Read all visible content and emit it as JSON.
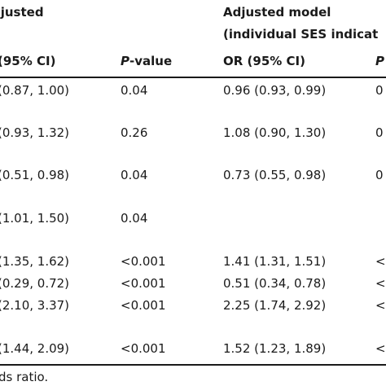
{
  "header": {
    "group_left": "djusted",
    "group_right_line1": "Adjusted model",
    "group_right_line2": "(individual SES indicat",
    "col_ci_left": "95% CI)",
    "col_p_left_italic": "P",
    "col_p_left_rest": "-value",
    "col_or_right": "OR (95% CI)",
    "col_p_right": "P"
  },
  "rows": [
    {
      "ci_left": "(0.87, 1.00)",
      "p_left": "0.04",
      "or_right": "0.96 (0.93, 0.99)",
      "p_right": "0"
    },
    {
      "ci_left": "(0.93, 1.32)",
      "p_left": "0.26",
      "or_right": "1.08 (0.90, 1.30)",
      "p_right": "0"
    },
    {
      "ci_left": "(0.51, 0.98)",
      "p_left": "0.04",
      "or_right": "0.73 (0.55, 0.98)",
      "p_right": "0"
    },
    {
      "ci_left": "(1.01, 1.50)",
      "p_left": "0.04",
      "or_right": "",
      "p_right": ""
    },
    {
      "ci_left": "(1.35, 1.62)",
      "p_left": "<0.001",
      "or_right": "1.41 (1.31, 1.51)",
      "p_right": "<"
    },
    {
      "ci_left": "(0.29, 0.72)",
      "p_left": "<0.001",
      "or_right": "0.51 (0.34, 0.78)",
      "p_right": "<"
    },
    {
      "ci_left": "(2.10, 3.37)",
      "p_left": "<0.001",
      "or_right": "2.25 (1.74, 2.92)",
      "p_right": "<"
    },
    {
      "ci_left": "(1.44, 2.09)",
      "p_left": "<0.001",
      "or_right": "1.52 (1.23, 1.89)",
      "p_right": "<"
    }
  ],
  "footnote": "ds ratio."
}
